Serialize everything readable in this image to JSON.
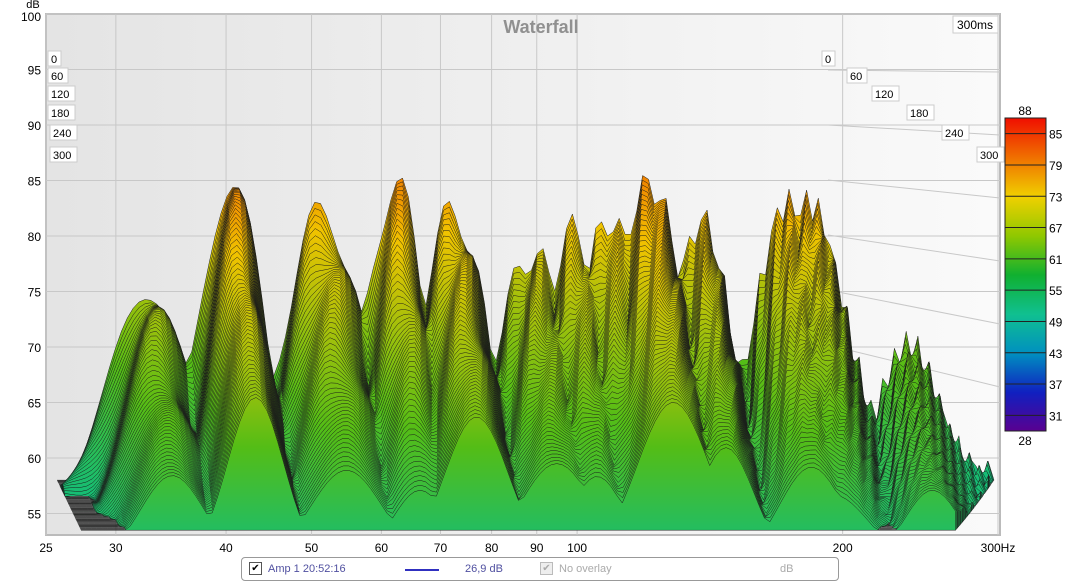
{
  "chart_data": {
    "type": "waterfall",
    "title": "Waterfall",
    "ylabel": "dB",
    "xlabel_unit": "Hz",
    "ylim": [
      53,
      100
    ],
    "yticks": [
      100,
      95,
      90,
      85,
      80,
      75,
      70,
      65,
      60,
      55
    ],
    "xlim": [
      25,
      300
    ],
    "xscale": "log",
    "xticks": [
      25,
      30,
      40,
      50,
      60,
      70,
      80,
      90,
      100,
      200,
      300
    ],
    "xtick_labels": [
      "25",
      "30",
      "40",
      "50",
      "60",
      "70",
      "80",
      "90",
      "100",
      "200",
      "300Hz"
    ],
    "time_label": "300ms",
    "time_ticks": [
      "0",
      "60",
      "120",
      "180",
      "240",
      "300"
    ],
    "time_range_ms": [
      0,
      300
    ],
    "peaks_hz_db": [
      [
        41,
        89
      ],
      [
        33,
        77
      ],
      [
        52,
        85
      ],
      [
        63,
        88
      ],
      [
        73,
        85
      ],
      [
        90,
        80
      ],
      [
        100,
        83
      ],
      [
        110,
        84
      ],
      [
        122,
        88
      ],
      [
        140,
        84
      ],
      [
        175,
        86
      ],
      [
        185,
        86
      ],
      [
        240,
        70
      ]
    ],
    "colorbar": {
      "min": 28,
      "max": 88,
      "ticks": [
        "88",
        "85",
        "79",
        "73",
        "67",
        "61",
        "55",
        "49",
        "43",
        "37",
        "31",
        "28"
      ],
      "colors": [
        "#5a0090",
        "#1020c0",
        "#0090c0",
        "#10c090",
        "#10b030",
        "#90c800",
        "#f0d000",
        "#f07000",
        "#f01000"
      ]
    }
  },
  "legend": {
    "measurement_name": "Amp 1 20:52:16",
    "line_color": "#3030c0",
    "offset": "26,9 dB",
    "overlay": "No overlay",
    "unit": "dB"
  }
}
